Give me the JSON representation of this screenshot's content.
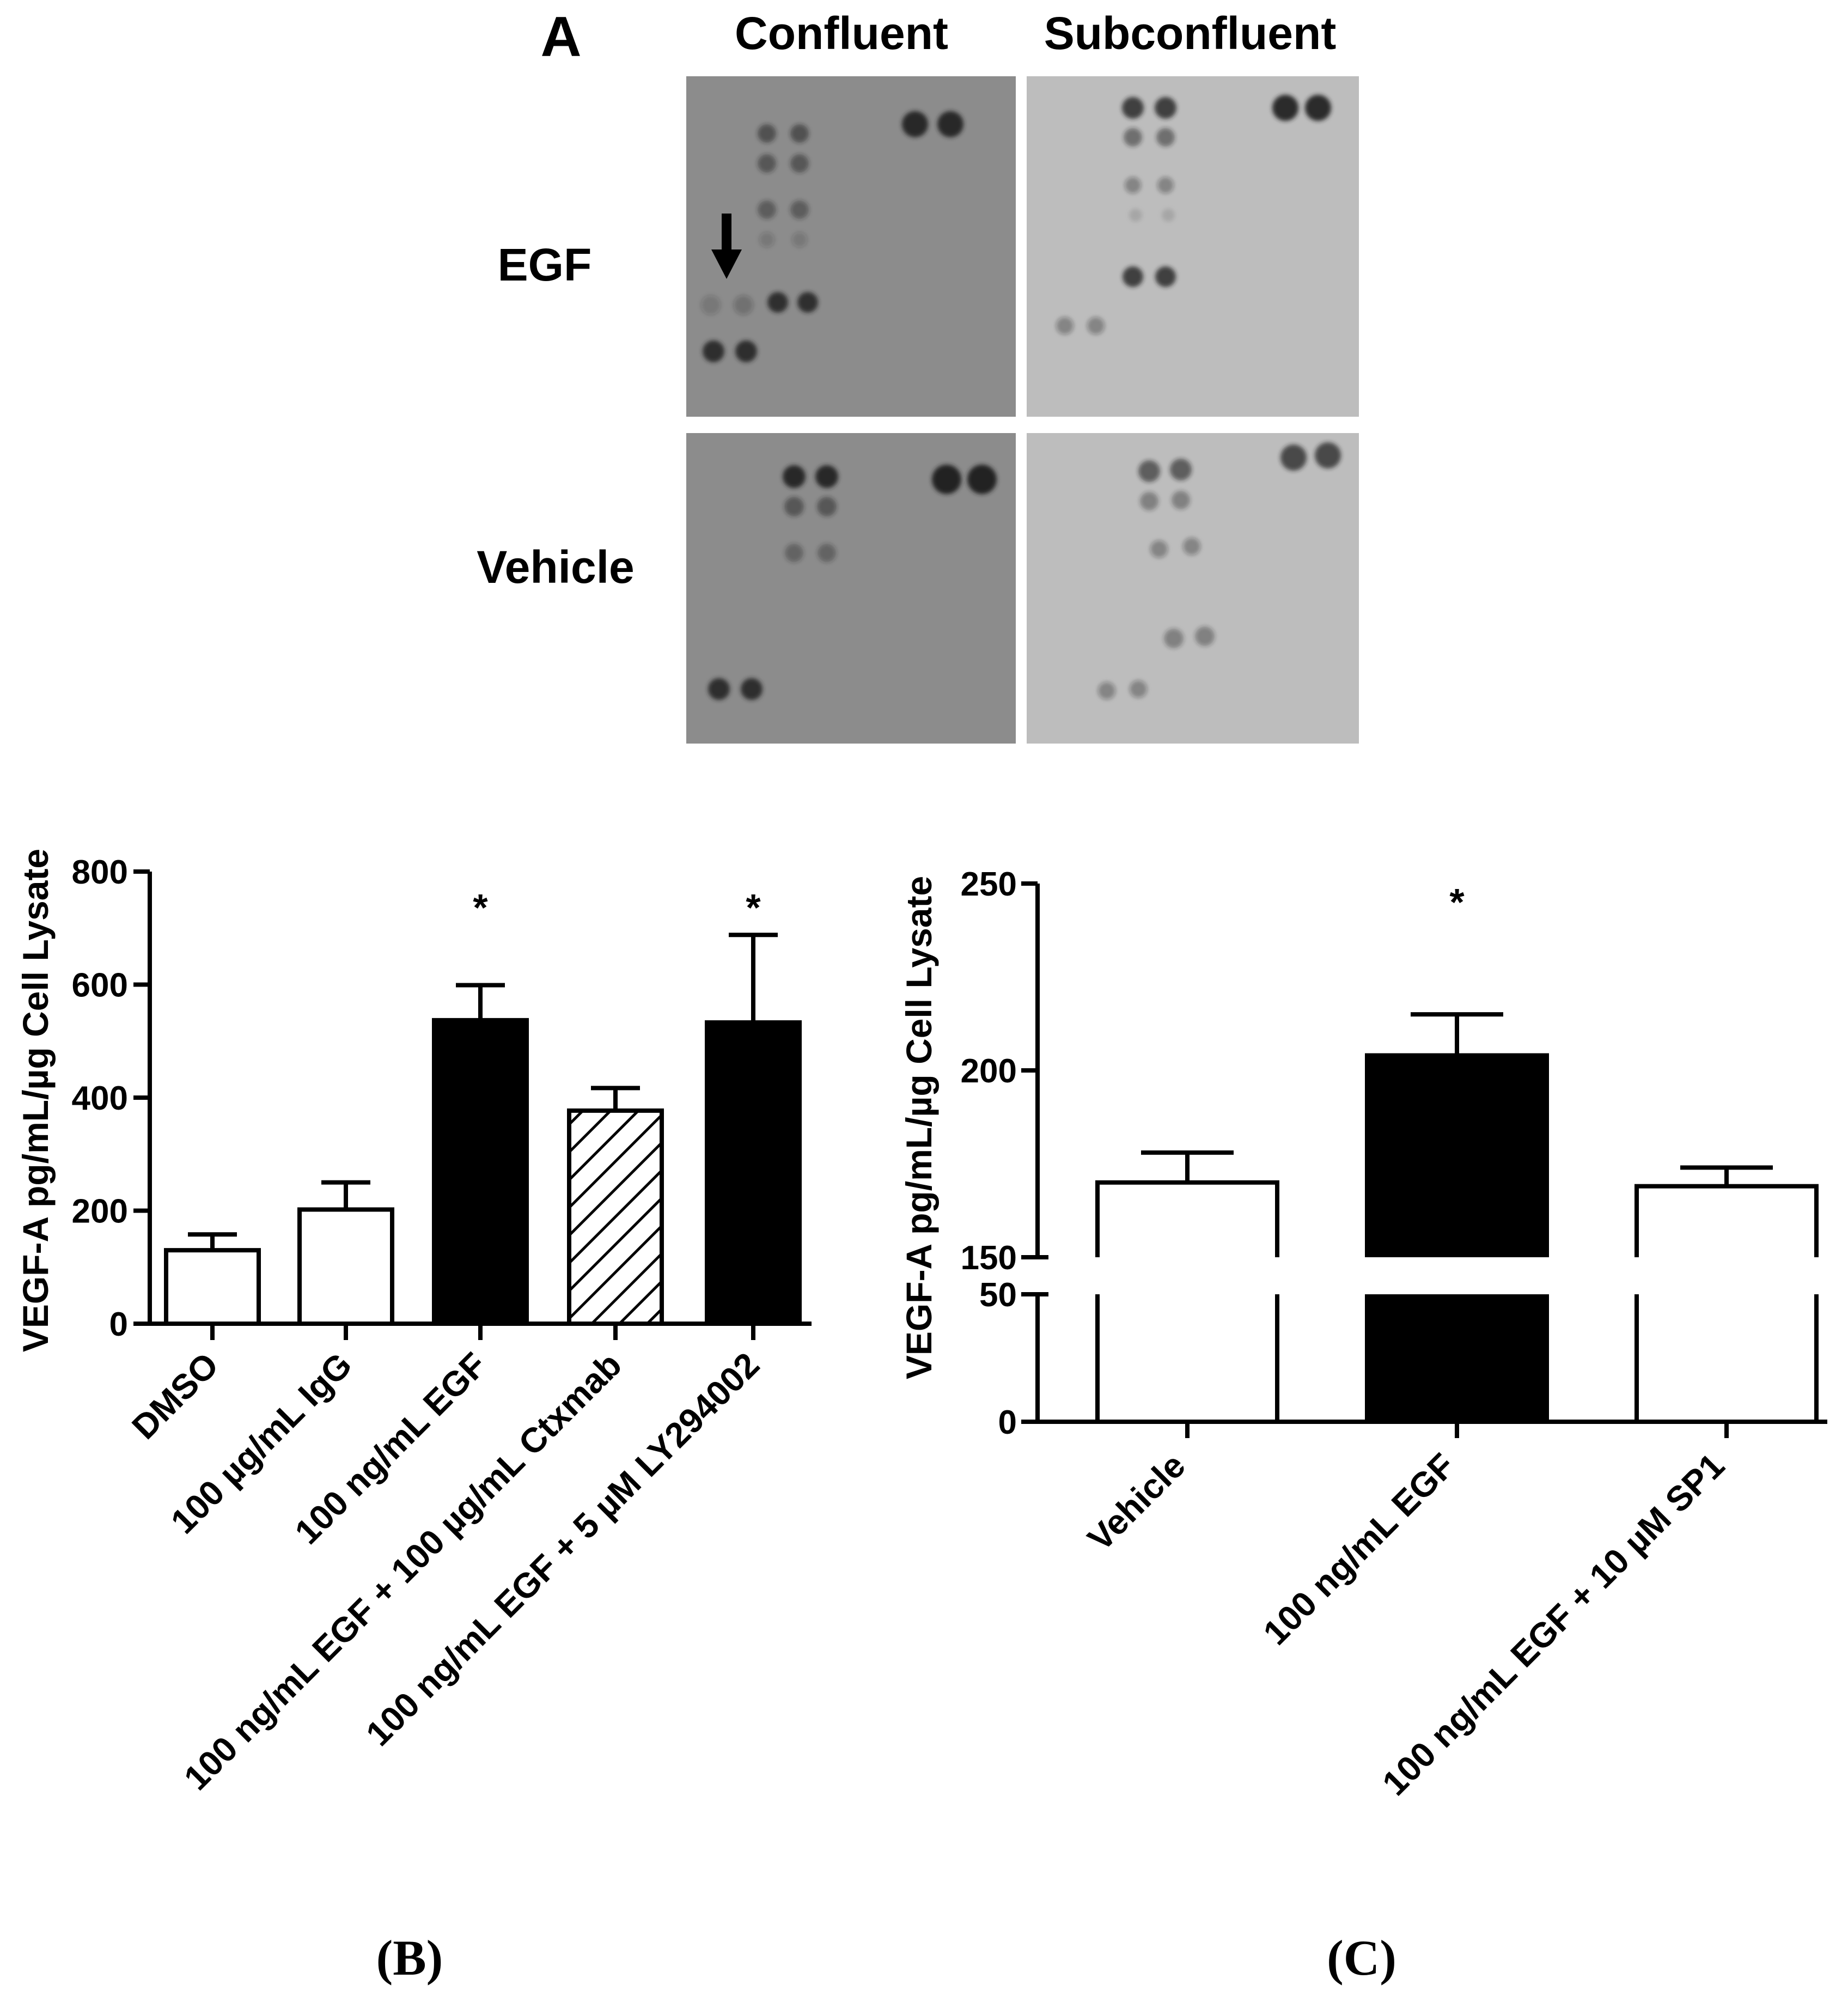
{
  "panel_a": {
    "label": "A",
    "column_labels": [
      "Confluent",
      "Subconfluent"
    ],
    "row_labels": [
      "EGF",
      "Vehicle"
    ],
    "colors": {
      "confluent_bg": "#8c8c8c",
      "subconfluent_bg": "#bdbdbd",
      "spot": "#222222"
    }
  },
  "chart_data": [
    {
      "type": "bar",
      "panel_caption": "(B)",
      "ylabel": "VEGF-A pg/mL/µg Cell Lysate",
      "xlabel": "",
      "categories": [
        "DMSO",
        "100 µg/mL IgG",
        "100 ng/mL EGF",
        "100 ng/mL EGF + 100 µg/mL Ctxmab",
        "100 ng/mL EGF + 5 µM LY294002"
      ],
      "values": [
        130,
        202,
        537,
        377,
        533
      ],
      "errors": [
        28,
        48,
        62,
        40,
        155
      ],
      "fills": [
        "white",
        "white",
        "black",
        "hatched",
        "black"
      ],
      "significance": [
        "",
        "",
        "*",
        "",
        "*"
      ],
      "ylim": [
        0,
        800
      ],
      "yticks": [
        0,
        200,
        400,
        600,
        800
      ],
      "grid": false
    },
    {
      "type": "bar",
      "panel_caption": "(C)",
      "ylabel": "VEGF-A pg/mL/µg Cell Lysate",
      "xlabel": "",
      "categories": [
        "Vehicle",
        "100 ng/mL EGF",
        "100 ng/mL EGF + 10 µM SP1"
      ],
      "values": [
        170,
        204,
        169
      ],
      "errors": [
        8,
        11,
        5
      ],
      "fills": [
        "white",
        "black",
        "white"
      ],
      "significance": [
        "",
        "*",
        ""
      ],
      "ylim": [
        0,
        250
      ],
      "axis_break": [
        50,
        150
      ],
      "yticks": [
        0,
        50,
        150,
        200,
        250
      ],
      "grid": false
    }
  ]
}
